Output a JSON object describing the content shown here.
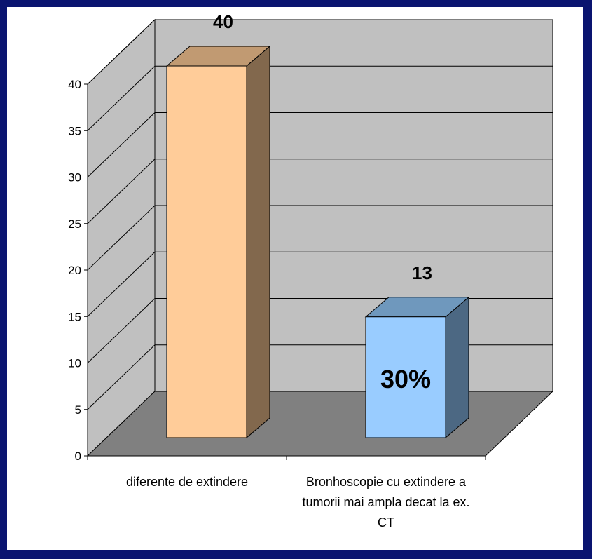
{
  "chart_data": {
    "type": "bar",
    "style": "3d-column",
    "categories": [
      "diferente de extindere",
      "Bronhoscopie cu extindere a tumorii mai ampla decat la ex. CT"
    ],
    "category_lines": [
      [
        "diferente de extindere"
      ],
      [
        "Bronhoscopie cu extindere a",
        "tumorii mai ampla decat la ex.",
        "CT"
      ]
    ],
    "values": [
      40,
      13
    ],
    "data_labels": [
      "40",
      "13"
    ],
    "annotations": [
      {
        "category_index": 1,
        "text": "30%"
      }
    ],
    "ylim": [
      0,
      40
    ],
    "yticks": [
      0,
      5,
      10,
      15,
      20,
      25,
      30,
      35,
      40
    ],
    "ytick_labels": [
      "0",
      "5",
      "10",
      "15",
      "20",
      "25",
      "30",
      "35",
      "40"
    ],
    "grid": true,
    "legend": "none",
    "title": "",
    "xlabel": "",
    "ylabel": "",
    "colors": {
      "page_border": "#0a1470",
      "back_wall": "#c0c0c0",
      "floor": "#808080",
      "bars": [
        {
          "front": "#ffcc99",
          "top": "#c19a72",
          "side": "#82684d"
        },
        {
          "front": "#99ccff",
          "top": "#6f98bd",
          "side": "#4c6883"
        }
      ]
    }
  }
}
